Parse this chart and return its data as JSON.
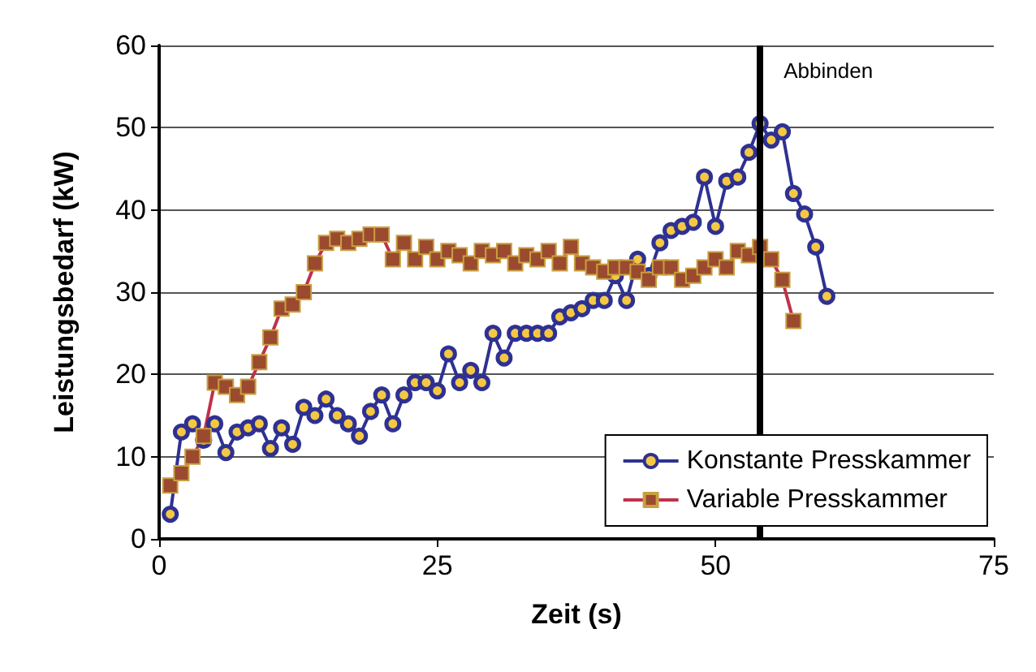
{
  "chart_data": {
    "type": "line",
    "xlabel": "Zeit (s)",
    "ylabel": "Leistungsbedarf (kW)",
    "xlim": [
      0,
      75
    ],
    "xticks": [
      0,
      25,
      50,
      75
    ],
    "ylim": [
      0,
      60
    ],
    "yticks": [
      0,
      10,
      20,
      30,
      40,
      50,
      60
    ],
    "grid": "y",
    "legend": "bottom right",
    "line_style": "solid",
    "ref_lines": [
      {
        "axis": "x",
        "value": 54,
        "label": "Abbinden",
        "color": "#000000"
      }
    ],
    "series": [
      {
        "name": "Konstante Presskammer",
        "color": "#2e3192",
        "marker": "circle",
        "x": [
          1,
          2,
          3,
          4,
          5,
          6,
          7,
          8,
          9,
          10,
          11,
          12,
          13,
          14,
          15,
          16,
          17,
          18,
          19,
          20,
          21,
          22,
          23,
          24,
          25,
          26,
          27,
          28,
          29,
          30,
          31,
          32,
          33,
          34,
          35,
          36,
          37,
          38,
          39,
          40,
          41,
          42,
          43,
          44,
          45,
          46,
          47,
          48,
          49,
          50,
          51,
          52,
          53,
          54,
          55,
          56,
          57,
          58,
          59,
          60
        ],
        "values": [
          3,
          13,
          14,
          12,
          14,
          10.5,
          13,
          13.5,
          14,
          11,
          13.5,
          11.5,
          16,
          15,
          17,
          15,
          14,
          12.5,
          15.5,
          17.5,
          14,
          17.5,
          19,
          19,
          18,
          22.5,
          19,
          20.5,
          19,
          25,
          22,
          25,
          25,
          25,
          25,
          27,
          27.5,
          28,
          29,
          29,
          32,
          29,
          34,
          32,
          36,
          37.5,
          38,
          38.5,
          44,
          38,
          43.5,
          44,
          47,
          50.5,
          48.5,
          49.5,
          42,
          39.5,
          35.5,
          29.5
        ]
      },
      {
        "name": "Variable Presskammer",
        "color": "#c0304a",
        "marker": "square",
        "x": [
          1,
          2,
          3,
          4,
          5,
          6,
          7,
          8,
          9,
          10,
          11,
          12,
          13,
          14,
          15,
          16,
          17,
          18,
          19,
          20,
          21,
          22,
          23,
          24,
          25,
          26,
          27,
          28,
          29,
          30,
          31,
          32,
          33,
          34,
          35,
          36,
          37,
          38,
          39,
          40,
          41,
          42,
          43,
          44,
          45,
          46,
          47,
          48,
          49,
          50,
          51,
          52,
          53,
          54,
          55,
          56,
          57
        ],
        "values": [
          6.5,
          8,
          10,
          12.5,
          19,
          18.5,
          17.5,
          18.5,
          21.5,
          24.5,
          28,
          28.5,
          30,
          33.5,
          36,
          36.5,
          36,
          36.5,
          37,
          37,
          34,
          36,
          34,
          35.5,
          34,
          35,
          34.5,
          33.5,
          35,
          34.5,
          35,
          33.5,
          34.5,
          34,
          35,
          33.5,
          35.5,
          33.5,
          33,
          32.5,
          33,
          33,
          32.5,
          31.5,
          33,
          33,
          31.5,
          32,
          33,
          34,
          33,
          35,
          34.5,
          35.5,
          34,
          31.5,
          26.5
        ]
      }
    ]
  }
}
